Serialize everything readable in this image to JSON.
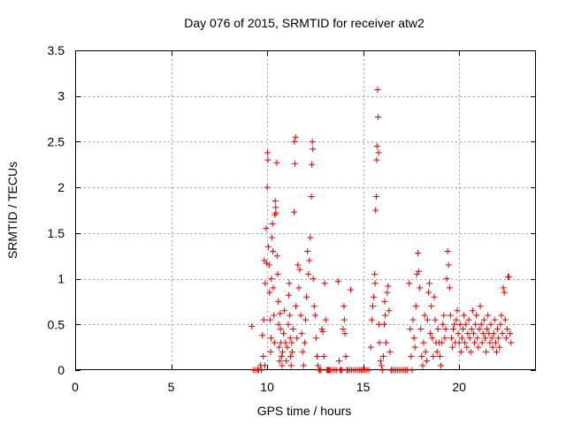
{
  "chart_data": {
    "type": "scatter",
    "title": "Day 076 of 2015, SRMTID for receiver atw2",
    "xlabel": "GPS time / hours",
    "ylabel": "SRMTID / TECUs",
    "xlim": [
      0,
      24
    ],
    "ylim": [
      0,
      3.5
    ],
    "x_ticks": [
      0,
      5,
      10,
      15,
      20
    ],
    "x_tick_labels": [
      "0",
      "5",
      "10",
      "15",
      "20"
    ],
    "y_ticks": [
      0,
      0.5,
      1,
      1.5,
      2,
      2.5,
      3,
      3.5
    ],
    "y_tick_labels": [
      "0",
      "0.5",
      "1",
      "1.5",
      "2",
      "2.5",
      "3",
      "3.5"
    ],
    "grid": true,
    "marker": "+",
    "color": "#e00000",
    "series": [
      {
        "name": "atw2",
        "points": [
          [
            9.2,
            0.48
          ],
          [
            9.3,
            0.0
          ],
          [
            9.4,
            0.0
          ],
          [
            9.5,
            0.0
          ],
          [
            9.55,
            0.0
          ],
          [
            9.65,
            0.05
          ],
          [
            9.7,
            0.0
          ],
          [
            9.75,
            0.38
          ],
          [
            9.8,
            0.15
          ],
          [
            9.82,
            0.55
          ],
          [
            9.85,
            1.2
          ],
          [
            9.88,
            0.05
          ],
          [
            9.9,
            0.95
          ],
          [
            9.95,
            1.55
          ],
          [
            9.97,
            1.17
          ],
          [
            10.0,
            2.0
          ],
          [
            10.02,
            2.38
          ],
          [
            10.04,
            2.3
          ],
          [
            10.06,
            1.35
          ],
          [
            10.1,
            1.15
          ],
          [
            10.12,
            0.85
          ],
          [
            10.15,
            0.55
          ],
          [
            10.18,
            0.2
          ],
          [
            10.2,
            0.35
          ],
          [
            10.22,
            1.0
          ],
          [
            10.25,
            1.45
          ],
          [
            10.28,
            1.6
          ],
          [
            10.3,
            1.3
          ],
          [
            10.32,
            0.9
          ],
          [
            10.35,
            0.6
          ],
          [
            10.38,
            0.3
          ],
          [
            10.4,
            1.7
          ],
          [
            10.42,
            1.85
          ],
          [
            10.44,
            1.78
          ],
          [
            10.46,
            1.72
          ],
          [
            10.5,
            2.27
          ],
          [
            10.52,
            1.25
          ],
          [
            10.55,
            1.05
          ],
          [
            10.58,
            0.75
          ],
          [
            10.6,
            0.5
          ],
          [
            10.62,
            0.25
          ],
          [
            10.65,
            0.1
          ],
          [
            10.68,
            0.62
          ],
          [
            10.7,
            0.45
          ],
          [
            10.72,
            0.3
          ],
          [
            10.75,
            0.15
          ],
          [
            10.78,
            0.05
          ],
          [
            10.8,
            0.2
          ],
          [
            10.85,
            0.4
          ],
          [
            10.9,
            0.65
          ],
          [
            10.95,
            0.3
          ],
          [
            11.0,
            0.1
          ],
          [
            11.05,
            0.25
          ],
          [
            11.1,
            0.5
          ],
          [
            11.12,
            0.82
          ],
          [
            11.15,
            0.95
          ],
          [
            11.18,
            0.6
          ],
          [
            11.2,
            0.35
          ],
          [
            11.22,
            0.15
          ],
          [
            11.25,
            0.05
          ],
          [
            11.28,
            0.3
          ],
          [
            11.3,
            0.2
          ],
          [
            11.35,
            0.45
          ],
          [
            11.4,
            1.73
          ],
          [
            11.42,
            2.5
          ],
          [
            11.45,
            2.26
          ],
          [
            11.48,
            2.55
          ],
          [
            11.5,
            0.7
          ],
          [
            11.55,
            0.35
          ],
          [
            11.6,
            1.15
          ],
          [
            11.65,
            0.9
          ],
          [
            11.7,
            1.1
          ],
          [
            11.75,
            0.6
          ],
          [
            11.8,
            0.4
          ],
          [
            11.85,
            0.2
          ],
          [
            11.9,
            0.05
          ],
          [
            11.95,
            0.3
          ],
          [
            12.0,
            0.55
          ],
          [
            12.05,
            0.8
          ],
          [
            12.1,
            1.3
          ],
          [
            12.15,
            1.05
          ],
          [
            12.2,
            1.2
          ],
          [
            12.25,
            1.45
          ],
          [
            12.3,
            1.9
          ],
          [
            12.32,
            2.25
          ],
          [
            12.35,
            2.5
          ],
          [
            12.38,
            2.42
          ],
          [
            12.4,
            1.0
          ],
          [
            12.45,
            0.7
          ],
          [
            12.5,
            0.6
          ],
          [
            12.55,
            0.35
          ],
          [
            12.6,
            0.15
          ],
          [
            12.65,
            0.05
          ],
          [
            12.7,
            0.0
          ],
          [
            12.75,
            0.0
          ],
          [
            12.8,
            0.0
          ],
          [
            12.85,
            0.45
          ],
          [
            12.9,
            0.42
          ],
          [
            12.95,
            0.15
          ],
          [
            13.0,
            0.95
          ],
          [
            13.05,
            0.55
          ],
          [
            13.1,
            0.0
          ],
          [
            13.15,
            0.0
          ],
          [
            13.2,
            0.0
          ],
          [
            13.25,
            0.0
          ],
          [
            13.3,
            0.0
          ],
          [
            13.4,
            0.0
          ],
          [
            13.5,
            0.0
          ],
          [
            13.6,
            0.0
          ],
          [
            13.7,
            0.97
          ],
          [
            13.75,
            0.1
          ],
          [
            13.8,
            0.0
          ],
          [
            13.85,
            0.0
          ],
          [
            13.9,
            0.0
          ],
          [
            13.95,
            0.45
          ],
          [
            14.0,
            0.7
          ],
          [
            14.02,
            0.55
          ],
          [
            14.05,
            0.4
          ],
          [
            14.1,
            0.15
          ],
          [
            14.15,
            0.0
          ],
          [
            14.2,
            0.0
          ],
          [
            14.3,
            0.0
          ],
          [
            14.35,
            0.88
          ],
          [
            14.4,
            0.0
          ],
          [
            14.5,
            0.0
          ],
          [
            14.6,
            0.0
          ],
          [
            14.7,
            0.0
          ],
          [
            14.8,
            0.0
          ],
          [
            14.9,
            0.0
          ],
          [
            15.0,
            0.0
          ],
          [
            15.1,
            0.0
          ],
          [
            15.2,
            0.0
          ],
          [
            15.3,
            0.0
          ],
          [
            15.4,
            0.25
          ],
          [
            15.45,
            0.55
          ],
          [
            15.5,
            0.7
          ],
          [
            15.55,
            0.8
          ],
          [
            15.6,
            1.05
          ],
          [
            15.62,
            0.95
          ],
          [
            15.65,
            1.75
          ],
          [
            15.68,
            1.9
          ],
          [
            15.7,
            2.3
          ],
          [
            15.72,
            2.45
          ],
          [
            15.75,
            3.07
          ],
          [
            15.78,
            2.77
          ],
          [
            15.8,
            2.38
          ],
          [
            15.82,
            0.5
          ],
          [
            15.85,
            0.3
          ],
          [
            15.9,
            0.1
          ],
          [
            15.95,
            0.05
          ],
          [
            16.0,
            0.0
          ],
          [
            16.05,
            0.15
          ],
          [
            16.1,
            0.5
          ],
          [
            16.12,
            0.75
          ],
          [
            16.15,
            0.6
          ],
          [
            16.2,
            0.3
          ],
          [
            16.25,
            0.85
          ],
          [
            16.3,
            0.92
          ],
          [
            16.35,
            0.65
          ],
          [
            16.4,
            0.2
          ],
          [
            16.45,
            0.0
          ],
          [
            16.5,
            0.0
          ],
          [
            16.6,
            0.0
          ],
          [
            16.7,
            0.0
          ],
          [
            16.8,
            0.0
          ],
          [
            16.9,
            0.0
          ],
          [
            17.0,
            0.0
          ],
          [
            17.1,
            0.0
          ],
          [
            17.2,
            0.0
          ],
          [
            17.3,
            0.0
          ],
          [
            17.4,
            0.95
          ],
          [
            17.45,
            0.45
          ],
          [
            17.5,
            0.15
          ],
          [
            17.55,
            0.0
          ],
          [
            17.6,
            0.55
          ],
          [
            17.65,
            0.35
          ],
          [
            17.7,
            0.25
          ],
          [
            17.75,
            0.7
          ],
          [
            17.8,
            1.05
          ],
          [
            17.85,
            1.28
          ],
          [
            17.9,
            1.08
          ],
          [
            17.95,
            0.9
          ],
          [
            18.0,
            0.45
          ],
          [
            18.05,
            0.15
          ],
          [
            18.1,
            0.05
          ],
          [
            18.15,
            0.3
          ],
          [
            18.2,
            0.6
          ],
          [
            18.25,
            0.2
          ],
          [
            18.3,
            0.1
          ],
          [
            18.35,
            0.55
          ],
          [
            18.4,
            0.85
          ],
          [
            18.45,
            0.95
          ],
          [
            18.5,
            0.4
          ],
          [
            18.55,
            0.7
          ],
          [
            18.6,
            0.35
          ],
          [
            18.65,
            0.15
          ],
          [
            18.7,
            0.8
          ],
          [
            18.75,
            0.55
          ],
          [
            18.8,
            0.3
          ],
          [
            18.85,
            0.2
          ],
          [
            18.9,
            0.45
          ],
          [
            18.95,
            0.3
          ],
          [
            19.0,
            0.15
          ],
          [
            19.05,
            0.05
          ],
          [
            19.1,
            0.3
          ],
          [
            19.15,
            0.5
          ],
          [
            19.2,
            0.6
          ],
          [
            19.25,
            0.35
          ],
          [
            19.3,
            0.45
          ],
          [
            19.35,
            1.0
          ],
          [
            19.4,
            1.3
          ],
          [
            19.45,
            1.15
          ],
          [
            19.5,
            0.9
          ],
          [
            19.55,
            0.6
          ],
          [
            19.6,
            0.35
          ],
          [
            19.65,
            0.25
          ],
          [
            19.7,
            0.45
          ],
          [
            19.75,
            0.5
          ],
          [
            19.8,
            0.3
          ],
          [
            19.85,
            0.55
          ],
          [
            19.9,
            0.65
          ],
          [
            19.95,
            0.4
          ],
          [
            20.0,
            0.3
          ],
          [
            20.05,
            0.5
          ],
          [
            20.1,
            0.2
          ],
          [
            20.15,
            0.35
          ],
          [
            20.2,
            0.45
          ],
          [
            20.25,
            0.6
          ],
          [
            20.3,
            0.3
          ],
          [
            20.35,
            0.5
          ],
          [
            20.4,
            0.25
          ],
          [
            20.45,
            0.4
          ],
          [
            20.5,
            0.55
          ],
          [
            20.55,
            0.35
          ],
          [
            20.6,
            0.2
          ],
          [
            20.65,
            0.45
          ],
          [
            20.7,
            0.65
          ],
          [
            20.75,
            0.4
          ],
          [
            20.8,
            0.3
          ],
          [
            20.85,
            0.5
          ],
          [
            20.9,
            0.6
          ],
          [
            20.95,
            0.35
          ],
          [
            21.0,
            0.25
          ],
          [
            21.05,
            0.45
          ],
          [
            21.1,
            0.7
          ],
          [
            21.15,
            0.5
          ],
          [
            21.2,
            0.3
          ],
          [
            21.25,
            0.4
          ],
          [
            21.3,
            0.55
          ],
          [
            21.35,
            0.35
          ],
          [
            21.4,
            0.2
          ],
          [
            21.45,
            0.45
          ],
          [
            21.5,
            0.6
          ],
          [
            21.55,
            0.4
          ],
          [
            21.6,
            0.3
          ],
          [
            21.65,
            0.5
          ],
          [
            21.7,
            0.35
          ],
          [
            21.75,
            0.25
          ],
          [
            21.8,
            0.4
          ],
          [
            21.85,
            0.55
          ],
          [
            21.9,
            0.3
          ],
          [
            21.95,
            0.2
          ],
          [
            22.0,
            0.45
          ],
          [
            22.05,
            0.35
          ],
          [
            22.1,
            0.25
          ],
          [
            22.15,
            0.5
          ],
          [
            22.2,
            0.6
          ],
          [
            22.25,
            0.4
          ],
          [
            22.3,
            0.9
          ],
          [
            22.35,
            0.85
          ],
          [
            22.4,
            0.55
          ],
          [
            22.45,
            0.35
          ],
          [
            22.5,
            0.45
          ],
          [
            22.55,
            1.02
          ],
          [
            22.6,
            1.02
          ],
          [
            22.65,
            0.4
          ],
          [
            22.7,
            0.3
          ]
        ]
      }
    ]
  }
}
